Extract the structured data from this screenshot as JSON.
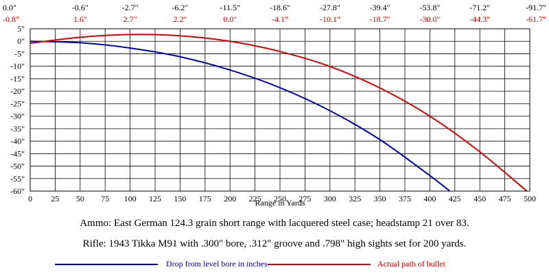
{
  "chart_data": {
    "type": "line",
    "xlabel": "Range in Yards",
    "ylabel": "",
    "xlim": [
      0,
      500
    ],
    "ylim": [
      -60,
      5
    ],
    "x_ticks": [
      0,
      25,
      50,
      75,
      100,
      125,
      150,
      175,
      200,
      225,
      250,
      275,
      300,
      325,
      350,
      375,
      400,
      425,
      450,
      475,
      500
    ],
    "y_ticks": [
      5,
      0,
      -5,
      -10,
      -15,
      -20,
      -25,
      -30,
      -35,
      -40,
      -45,
      -50,
      -55,
      -60
    ],
    "y_tick_labels": [
      "5\"",
      "0\"",
      "-5\"",
      "-10\"",
      "-15\"",
      "-20\"",
      "-25\"",
      "-30\"",
      "-35\"",
      "-40\"",
      "-45\"",
      "-50\"",
      "-55\"",
      "-60\""
    ],
    "grid": true,
    "top_labels": {
      "range_yards": [
        0,
        50,
        100,
        150,
        200,
        250,
        300,
        350,
        400,
        450,
        500
      ],
      "drop": [
        "0.0\"",
        "-0.6\"",
        "-2.7\"",
        "-6.2\"",
        "-11.5\"",
        "-18.6\"",
        "-27.8\"",
        "-39.4\"",
        "-53.8\"",
        "-71.2\"",
        "-91.7\""
      ],
      "path": [
        "-0.8\"",
        "1.6\"",
        "2.7\"",
        "2.2\"",
        "0.0\"",
        "-4.1\"",
        "-10.1\"",
        "-18.7\"",
        "-30.0\"",
        "-44.3\"",
        "-61.7\""
      ]
    },
    "series": [
      {
        "name": "Drop from level bore in inches",
        "color": "#0000b0",
        "x": [
          0,
          50,
          100,
          150,
          200,
          250,
          300,
          350,
          400,
          420
        ],
        "y": [
          0.0,
          -0.6,
          -2.7,
          -6.2,
          -11.5,
          -18.6,
          -27.8,
          -39.4,
          -53.8,
          -60.0
        ]
      },
      {
        "name": "Actual path of bullet",
        "color": "#d00000",
        "x": [
          0,
          50,
          100,
          150,
          200,
          250,
          300,
          350,
          400,
          450,
          497
        ],
        "y": [
          -0.8,
          1.6,
          2.7,
          2.2,
          0.0,
          -4.1,
          -10.1,
          -18.7,
          -30.0,
          -44.3,
          -60.0
        ]
      }
    ]
  },
  "captions": {
    "ammo": "Ammo:  East German 124.3 grain short range with lacquered steel case; headstamp 21 over 83.",
    "rifle": "Rifle:  1943 Tikka M91 with .300\" bore, .312\" groove and .798\" high sights set for 200 yards."
  }
}
